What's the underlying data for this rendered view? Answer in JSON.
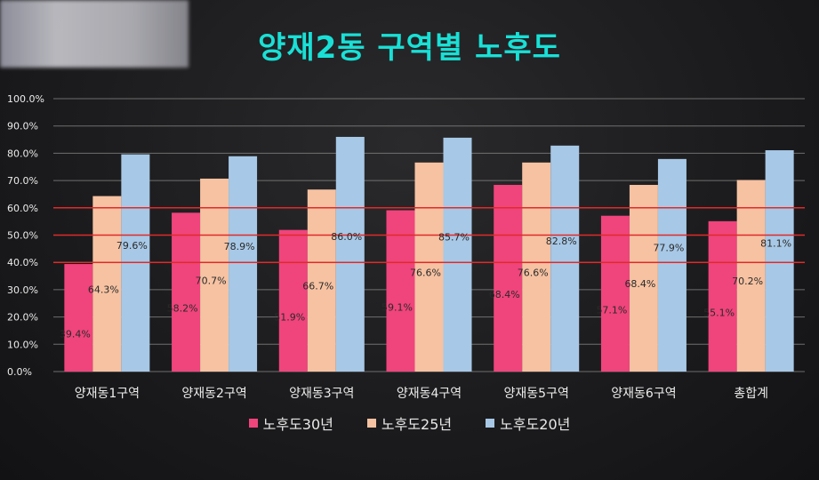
{
  "chart_data": {
    "type": "bar",
    "title": "양재2동 구역별 노후도",
    "categories": [
      "양재동1구역",
      "양재동2구역",
      "양재동3구역",
      "양재동4구역",
      "양재동5구역",
      "양재동6구역",
      "총합계"
    ],
    "series": [
      {
        "name": "노후도30년",
        "color": "#f0447c",
        "values": [
          39.4,
          58.2,
          51.9,
          59.1,
          68.4,
          57.1,
          55.1
        ],
        "labels": [
          "39.4%",
          "58.2%",
          "51.9%",
          "59.1%",
          "68.4%",
          "57.1%",
          "55.1%"
        ]
      },
      {
        "name": "노후도25년",
        "color": "#f6c2a2",
        "values": [
          64.3,
          70.7,
          66.7,
          76.6,
          76.6,
          68.4,
          70.2
        ],
        "labels": [
          "64.3%",
          "70.7%",
          "66.7%",
          "76.6%",
          "76.6%",
          "68.4%",
          "70.2%"
        ]
      },
      {
        "name": "노후도20년",
        "color": "#a7c8e6",
        "values": [
          79.6,
          78.9,
          86.0,
          85.7,
          82.8,
          77.9,
          81.1
        ],
        "labels": [
          "79.6%",
          "78.9%",
          "86.0%",
          "85.7%",
          "82.8%",
          "77.9%",
          "81.1%"
        ]
      }
    ],
    "y_ticks": [
      "0.0%",
      "10.0%",
      "20.0%",
      "30.0%",
      "40.0%",
      "50.0%",
      "60.0%",
      "70.0%",
      "80.0%",
      "90.0%",
      "100.0%"
    ],
    "ylim": [
      0,
      100
    ],
    "reference_lines": [
      40,
      50,
      60
    ],
    "reference_line_color": "#e02a2a",
    "grid": true,
    "legend_position": "bottom"
  },
  "colors": {
    "title": "#19e0d6",
    "grid": "#8a8a8a",
    "text": "#ececec",
    "data_label": "#2a2a2a"
  }
}
